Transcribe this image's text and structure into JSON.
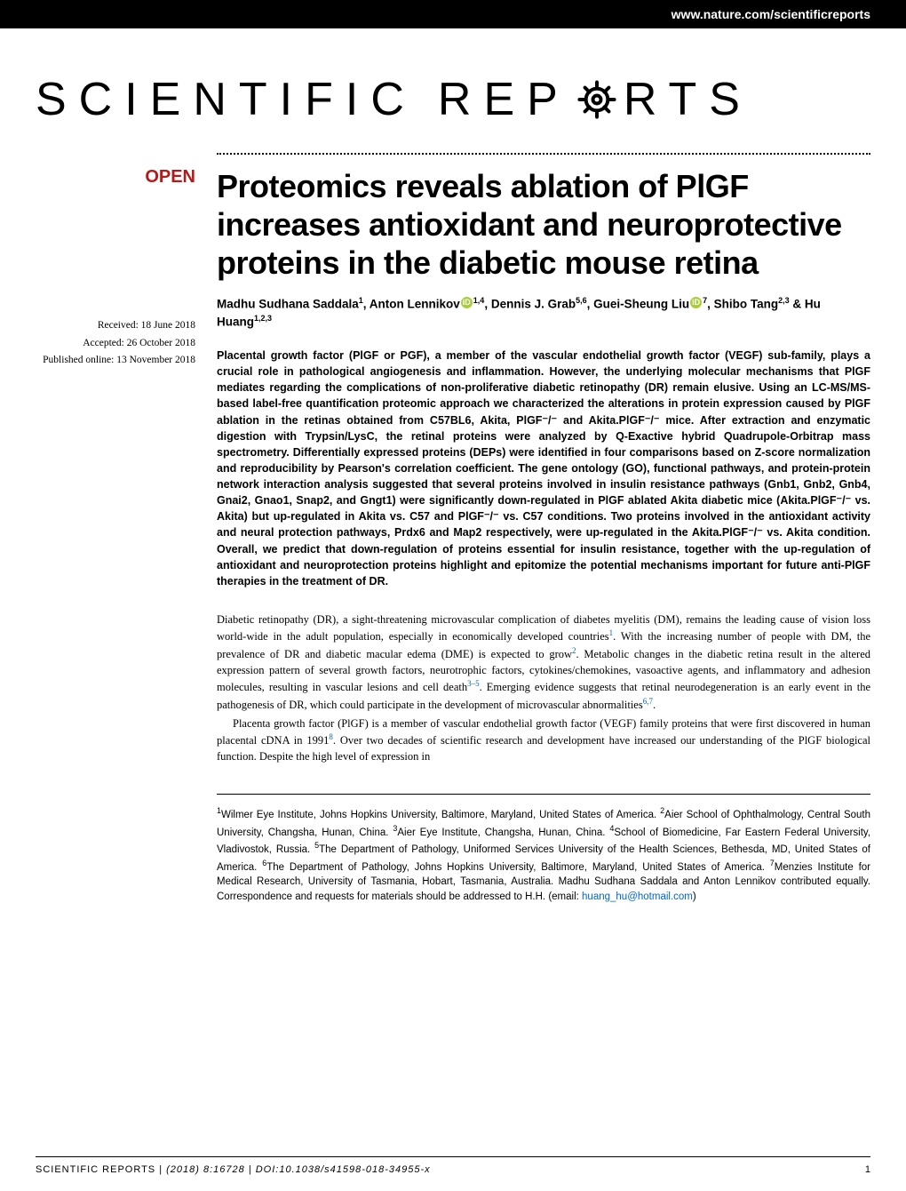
{
  "header": {
    "url": "www.nature.com/scientificreports"
  },
  "logo": {
    "part1": "SCIENTIFIC",
    "part2_pre": "REP",
    "part2_post": "RTS"
  },
  "badge": "OPEN",
  "dates": {
    "received": "Received: 18 June 2018",
    "accepted": "Accepted: 26 October 2018",
    "published": "Published online: 13 November 2018"
  },
  "title": "Proteomics reveals ablation of PlGF increases antioxidant and neuroprotective proteins in the diabetic mouse retina",
  "authors_html": "Madhu Sudhana Saddala<sup>1</sup>, Anton Lennikov<span class='orcid'>iD</span><sup>1,4</sup>, Dennis J. Grab<sup>5,6</sup>, Guei-Sheung Liu<span class='orcid'>iD</span><sup>7</sup>, Shibo Tang<sup>2,3</sup> & Hu Huang<sup>1,2,3</sup>",
  "abstract": "Placental growth factor (PlGF or PGF), a member of the vascular endothelial growth factor (VEGF) sub-family, plays a crucial role in pathological angiogenesis and inflammation. However, the underlying molecular mechanisms that PlGF mediates regarding the complications of non-proliferative diabetic retinopathy (DR) remain elusive. Using an LC-MS/MS-based label-free quantification proteomic approach we characterized the alterations in protein expression caused by PlGF ablation in the retinas obtained from C57BL6, Akita, PlGF⁻/⁻ and Akita.PlGF⁻/⁻ mice. After extraction and enzymatic digestion with Trypsin/LysC, the retinal proteins were analyzed by Q-Exactive hybrid Quadrupole-Orbitrap mass spectrometry. Differentially expressed proteins (DEPs) were identified in four comparisons based on Z-score normalization and reproducibility by Pearson's correlation coefficient. The gene ontology (GO), functional pathways, and protein-protein network interaction analysis suggested that several proteins involved in insulin resistance pathways (Gnb1, Gnb2, Gnb4, Gnai2, Gnao1, Snap2, and Gngt1) were significantly down-regulated in PlGF ablated Akita diabetic mice (Akita.PlGF⁻/⁻ vs. Akita) but up-regulated in Akita vs. C57 and PlGF⁻/⁻ vs. C57 conditions. Two proteins involved in the antioxidant activity and neural protection pathways, Prdx6 and Map2 respectively, were up-regulated in the Akita.PlGF⁻/⁻ vs. Akita condition. Overall, we predict that down-regulation of proteins essential for insulin resistance, together with the up-regulation of antioxidant and neuroprotection proteins highlight and epitomize the potential mechanisms important for future anti-PlGF therapies in the treatment of DR.",
  "body_p1_html": "Diabetic retinopathy (DR), a sight-threatening microvascular complication of diabetes myelitis (DM), remains the leading cause of vision loss world-wide in the adult population, especially in economically developed countries<span class='ref-link'>1</span>. With the increasing number of people with DM, the prevalence of DR and diabetic macular edema (DME) is expected to grow<span class='ref-link'>2</span>. Metabolic changes in the diabetic retina result in the altered expression pattern of several growth factors, neurotrophic factors, cytokines/chemokines, vasoactive agents, and inflammatory and adhesion molecules, resulting in vascular lesions and cell death<span class='ref-link'>3–5</span>. Emerging evidence suggests that retinal neurodegeneration is an early event in the pathogenesis of DR, which could participate in the development of microvascular abnormalities<span class='ref-link'>6,7</span>.",
  "body_p2_html": "Placenta growth factor (PlGF) is a member of vascular endothelial growth factor (VEGF) family proteins that were first discovered in human placental cDNA in 1991<span class='ref-link'>8</span>. Over two decades of scientific research and development have increased our understanding of the PlGF biological function. Despite the high level of expression in",
  "affiliations_html": "<sup>1</sup>Wilmer Eye Institute, Johns Hopkins University, Baltimore, Maryland, United States of America. <sup>2</sup>Aier School of Ophthalmology, Central South University, Changsha, Hunan, China. <sup>3</sup>Aier Eye Institute, Changsha, Hunan, China. <sup>4</sup>School of Biomedicine, Far Eastern Federal University, Vladivostok, Russia. <sup>5</sup>The Department of Pathology, Uniformed Services University of the Health Sciences, Bethesda, MD, United States of America. <sup>6</sup>The Department of Pathology, Johns Hopkins University, Baltimore, Maryland, United States of America. <sup>7</sup>Menzies Institute for Medical Research, University of Tasmania, Hobart, Tasmania, Australia. Madhu Sudhana Saddala and Anton Lennikov contributed equally. Correspondence and requests for materials should be addressed to H.H. (email: <span class='email-link'>huang_hu@hotmail.com</span>)",
  "footer": {
    "journal": "SCIENTIFIC REPORTS",
    "citation": "(2018) 8:16728 | DOI:10.1038/s41598-018-34955-x",
    "page": "1"
  },
  "colors": {
    "open_badge": "#b31b1b",
    "link": "#0066cc",
    "orcid_bg": "#a6ce39",
    "header_bg": "#000000"
  }
}
